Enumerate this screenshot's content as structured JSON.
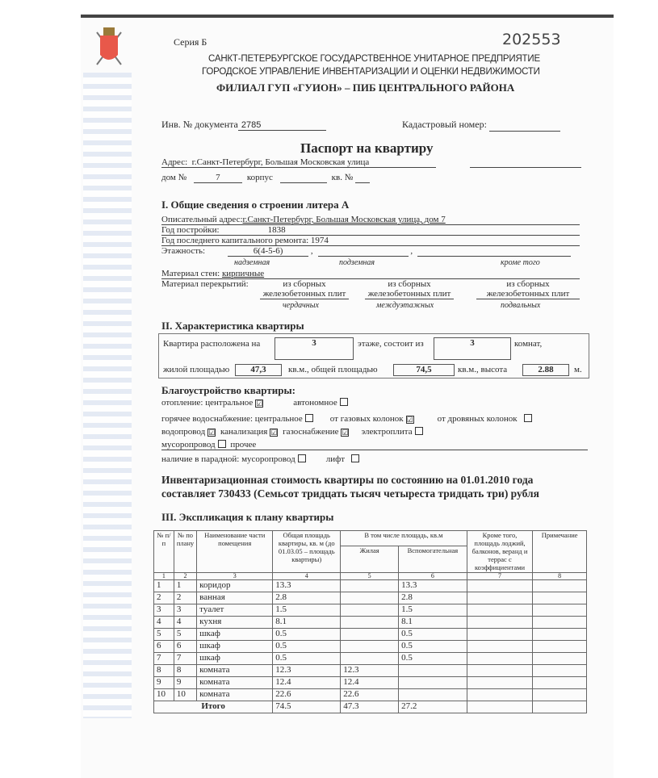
{
  "header": {
    "series": "Серия Б",
    "number": "202553",
    "org1": "САНКТ-ПЕТЕРБУРГСКОЕ ГОСУДАРСТВЕННОЕ УНИТАРНОЕ ПРЕДПРИЯТИЕ",
    "org2": "ГОРОДСКОЕ УПРАВЛЕНИЕ ИНВЕНТАРИЗАЦИИ И ОЦЕНКИ НЕДВИЖИМОСТИ",
    "org3": "ФИЛИАЛ ГУП «ГУИОН» – ПИБ ЦЕНТРАЛЬНОГО РАЙОНА"
  },
  "doc": {
    "inv_label": "Инв. № документа",
    "inv_value": "2785",
    "cadastral_label": "Кадастровый номер:",
    "title": "Паспорт на квартиру",
    "address_label": "Адрес:",
    "address_value": "г.Санкт-Петербург, Большая Московская улица",
    "house_label": "дом №",
    "house_value": "7",
    "building_label": "корпус",
    "apt_label": "кв. №"
  },
  "s1": {
    "title": "I. Общие сведения о строении литера А",
    "addr_label": "Описательный адрес:",
    "addr_value": "г.Санкт-Петербург, Большая Московская улица, дом 7",
    "year_label": "Год постройки:",
    "year_value": "1838",
    "repair_label": "Год последнего капитального ремонта:",
    "repair_value": "1974",
    "floors_label": "Этажность:",
    "floors_value": "6(4-5-6)",
    "above": "надземная",
    "under": "подземная",
    "besides": "кроме того",
    "walls_label": "Материал стен:",
    "walls_value": "кирпичные",
    "floors_mat_label": "Материал перекрытий:",
    "slab1": "из сборных",
    "slab2": "железобетонных плит",
    "attic": "чердачных",
    "inter": "междуэтажных",
    "base": "подвальных"
  },
  "s2": {
    "title": "II. Характеристика квартиры",
    "floor_label": "Квартира расположена на",
    "floor": "3",
    "rooms_label": "этаже, состоит из",
    "rooms": "3",
    "rooms_unit": "комнат,",
    "living_label": "жилой площадью",
    "living": "47,3",
    "unit1": "кв.м., общей площадью",
    "total": "74,5",
    "unit2": "кв.м., высота",
    "height": "2.88",
    "unit3": "м."
  },
  "amen": {
    "title": "Благоустройство квартиры:",
    "heating": "отопление:",
    "central": "центральное",
    "autonomous": "автономное",
    "hotwater": "горячее водоснабжение:",
    "gas_col": "от газовых колонок",
    "wood_col": "от дровяных колонок",
    "water": "водопровод",
    "sewer": "канализация",
    "gas": "газоснабжение",
    "stove": "электроплита",
    "chute": "мусоропровод",
    "other": "прочее",
    "entrance": "наличие в парадной:",
    "lift": "лифт",
    "checked": "☑"
  },
  "cost": {
    "line1": "Инвентаризационная стоимость квартиры по состоянию на 01.01.2010 года",
    "line2": "составляет 730433 (Семьсот тридцать тысяч четыреста тридцать три) рубля"
  },
  "s3": {
    "title": "III. Экспликация к плану квартиры",
    "headers": {
      "c1": "№ п/п",
      "c2": "№ по плану",
      "c3": "Наименование части помещения",
      "c4": "Общая площадь квартиры, кв. м (до 01.03.05 – площадь квартиры)",
      "c56": "В том числе площадь, кв.м",
      "c5": "Жилая",
      "c6": "Вспомогательная",
      "c7": "Кроме того, площадь лоджий, балконов, веранд и террас с коэффициентами",
      "c8": "Примечание"
    },
    "colnums": [
      "1",
      "2",
      "3",
      "4",
      "5",
      "6",
      "7",
      "8"
    ],
    "rows": [
      [
        "1",
        "1",
        "коридор",
        "13.3",
        "",
        "13.3"
      ],
      [
        "2",
        "2",
        "ванная",
        "2.8",
        "",
        "2.8"
      ],
      [
        "3",
        "3",
        "туалет",
        "1.5",
        "",
        "1.5"
      ],
      [
        "4",
        "4",
        "кухня",
        "8.1",
        "",
        "8.1"
      ],
      [
        "5",
        "5",
        "шкаф",
        "0.5",
        "",
        "0.5"
      ],
      [
        "6",
        "6",
        "шкаф",
        "0.5",
        "",
        "0.5"
      ],
      [
        "7",
        "7",
        "шкаф",
        "0.5",
        "",
        "0.5"
      ],
      [
        "8",
        "8",
        "комната",
        "12.3",
        "12.3",
        ""
      ],
      [
        "9",
        "9",
        "комната",
        "12.4",
        "12.4",
        ""
      ],
      [
        "10",
        "10",
        "комната",
        "22.6",
        "22.6",
        ""
      ]
    ],
    "total": {
      "label": "Итого",
      "c4": "74.5",
      "c5": "47.3",
      "c6": "27.2"
    }
  }
}
